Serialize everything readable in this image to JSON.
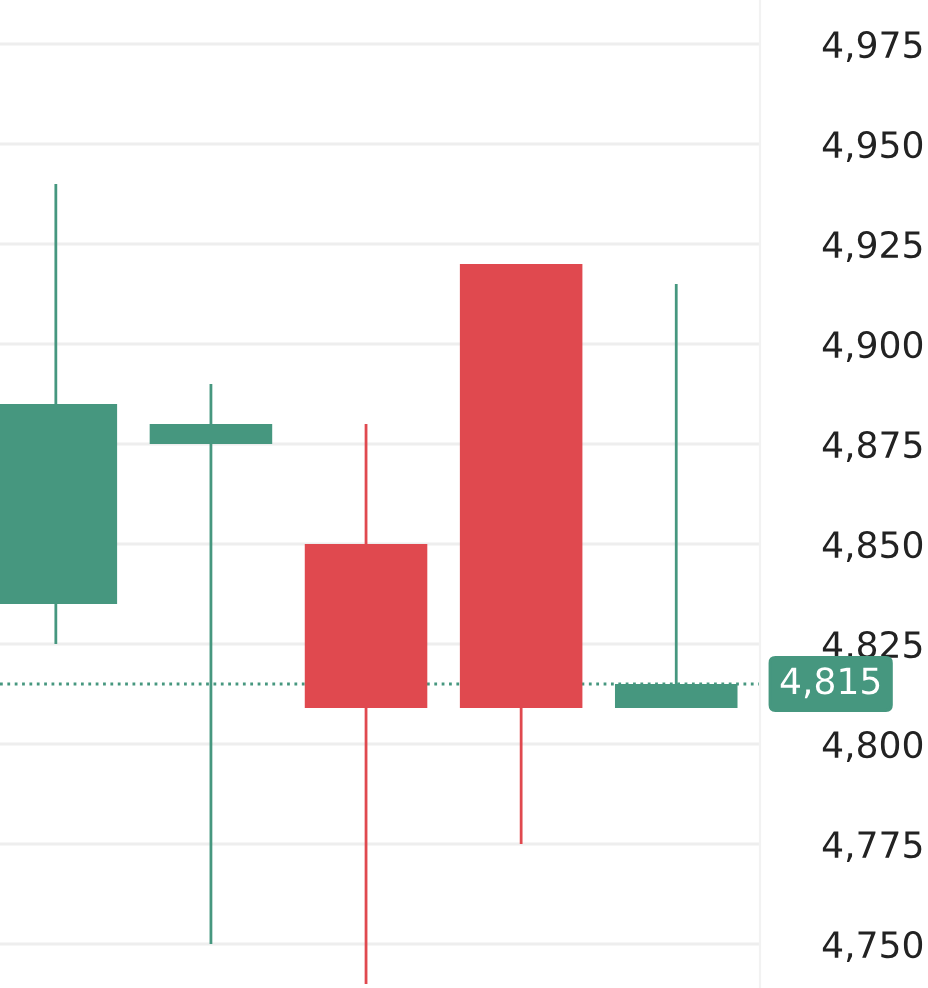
{
  "chart_data": {
    "type": "candlestick",
    "categories": [
      null,
      null,
      null,
      null,
      null
    ],
    "ohlc": [
      [
        4835,
        4940,
        4825,
        4885
      ],
      [
        4875,
        4890,
        4750,
        4880
      ],
      [
        4850,
        4880,
        4740,
        4809
      ],
      [
        4920,
        4920,
        4775,
        4809
      ],
      [
        4809,
        4915,
        4809,
        4815
      ]
    ],
    "colors": [
      "#46977f",
      "#46977f",
      "#e0494f",
      "#e0494f",
      "#46977f"
    ],
    "ylim": [
      4739,
      4986
    ],
    "yticks": [
      {
        "value": 4750,
        "label": "4,750"
      },
      {
        "value": 4775,
        "label": "4,775"
      },
      {
        "value": 4800,
        "label": "4,800"
      },
      {
        "value": 4825,
        "label": "4,825"
      },
      {
        "value": 4850,
        "label": "4,850"
      },
      {
        "value": 4875,
        "label": "4,875"
      },
      {
        "value": 4900,
        "label": "4,900"
      },
      {
        "value": 4925,
        "label": "4,925"
      },
      {
        "value": 4950,
        "label": "4,950"
      },
      {
        "value": 4975,
        "label": "4,975"
      }
    ],
    "ref_lines": [
      {
        "axis": "y",
        "value": 4815,
        "label": "4,815",
        "color": "#46977f",
        "line_style": "dotted"
      }
    ],
    "grid": "y"
  }
}
